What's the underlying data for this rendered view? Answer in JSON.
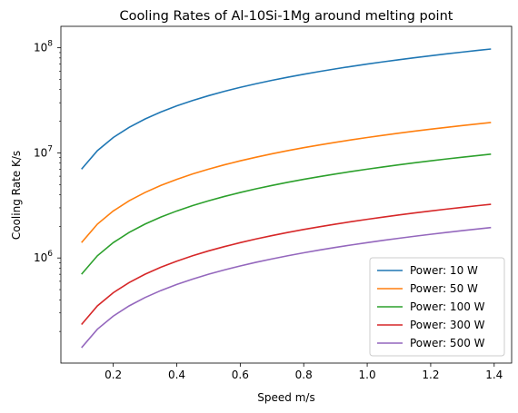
{
  "chart_data": {
    "type": "line",
    "title": "Cooling Rates of Al-10Si-1Mg around melting point",
    "xlabel": "Speed m/s",
    "ylabel": "Cooling Rate K/s",
    "x_scale": "linear",
    "y_scale": "log",
    "xlim": [
      0.035,
      1.455
    ],
    "ylim": [
      100000,
      160000000
    ],
    "x_ticks": [
      0.2,
      0.4,
      0.6,
      0.8,
      1.0,
      1.2,
      1.4
    ],
    "x_tick_labels": [
      "0.2",
      "0.4",
      "0.6",
      "0.8",
      "1.0",
      "1.2",
      "1.4"
    ],
    "y_ticks": [
      1000000,
      10000000,
      100000000
    ],
    "y_tick_labels": [
      {
        "base": "10",
        "exp": "6"
      },
      {
        "base": "10",
        "exp": "7"
      },
      {
        "base": "10",
        "exp": "8"
      }
    ],
    "legend_position": "lower-right",
    "x": [
      0.1,
      0.15,
      0.2,
      0.25,
      0.3,
      0.35,
      0.4,
      0.45,
      0.5,
      0.55,
      0.6,
      0.65,
      0.7,
      0.75,
      0.8,
      0.85,
      0.9,
      0.95,
      1.0,
      1.05,
      1.1,
      1.15,
      1.2,
      1.25,
      1.3,
      1.35,
      1.39
    ],
    "series": [
      {
        "name": "Power: 10 W",
        "color": "#1f77b4",
        "values": [
          7000000,
          10500000,
          14000000,
          17500000,
          21000000,
          24500000,
          28000000,
          31500000,
          35000000,
          38500000,
          42000000,
          45500000,
          49000000,
          52500000,
          56000000,
          59500000,
          63000000,
          66500000,
          70000000,
          73500000,
          77000000,
          80500000,
          84000000,
          87500000,
          91000000,
          94500000,
          97300000
        ]
      },
      {
        "name": "Power: 50 W",
        "color": "#ff7f0e",
        "values": [
          1400000,
          2100000,
          2800000,
          3500000,
          4200000,
          4900000,
          5600000,
          6300000,
          7000000,
          7700000,
          8400000,
          9100000,
          9800000,
          10500000,
          11200000,
          11900000,
          12600000,
          13300000,
          14000000,
          14700000,
          15400000,
          16100000,
          16800000,
          17500000,
          18200000,
          18900000,
          19460000
        ]
      },
      {
        "name": "Power: 100 W",
        "color": "#2ca02c",
        "values": [
          700000,
          1050000,
          1400000,
          1750000,
          2100000,
          2450000,
          2800000,
          3150000,
          3500000,
          3850000,
          4200000,
          4550000,
          4900000,
          5250000,
          5600000,
          5950000,
          6300000,
          6650000,
          7000000,
          7350000,
          7700000,
          8050000,
          8400000,
          8750000,
          9100000,
          9450000,
          9730000
        ]
      },
      {
        "name": "Power: 300 W",
        "color": "#d62728",
        "values": [
          233000,
          350000,
          467000,
          583000,
          700000,
          817000,
          933000,
          1050000,
          1167000,
          1283000,
          1400000,
          1517000,
          1633000,
          1750000,
          1867000,
          1983000,
          2100000,
          2217000,
          2333000,
          2450000,
          2567000,
          2683000,
          2800000,
          2917000,
          3033000,
          3150000,
          3243000
        ]
      },
      {
        "name": "Power: 500 W",
        "color": "#9467bd",
        "values": [
          140000,
          210000,
          280000,
          350000,
          420000,
          490000,
          560000,
          630000,
          700000,
          770000,
          840000,
          910000,
          980000,
          1050000,
          1120000,
          1190000,
          1260000,
          1330000,
          1400000,
          1470000,
          1540000,
          1610000,
          1680000,
          1750000,
          1820000,
          1890000,
          1946000
        ]
      }
    ]
  }
}
